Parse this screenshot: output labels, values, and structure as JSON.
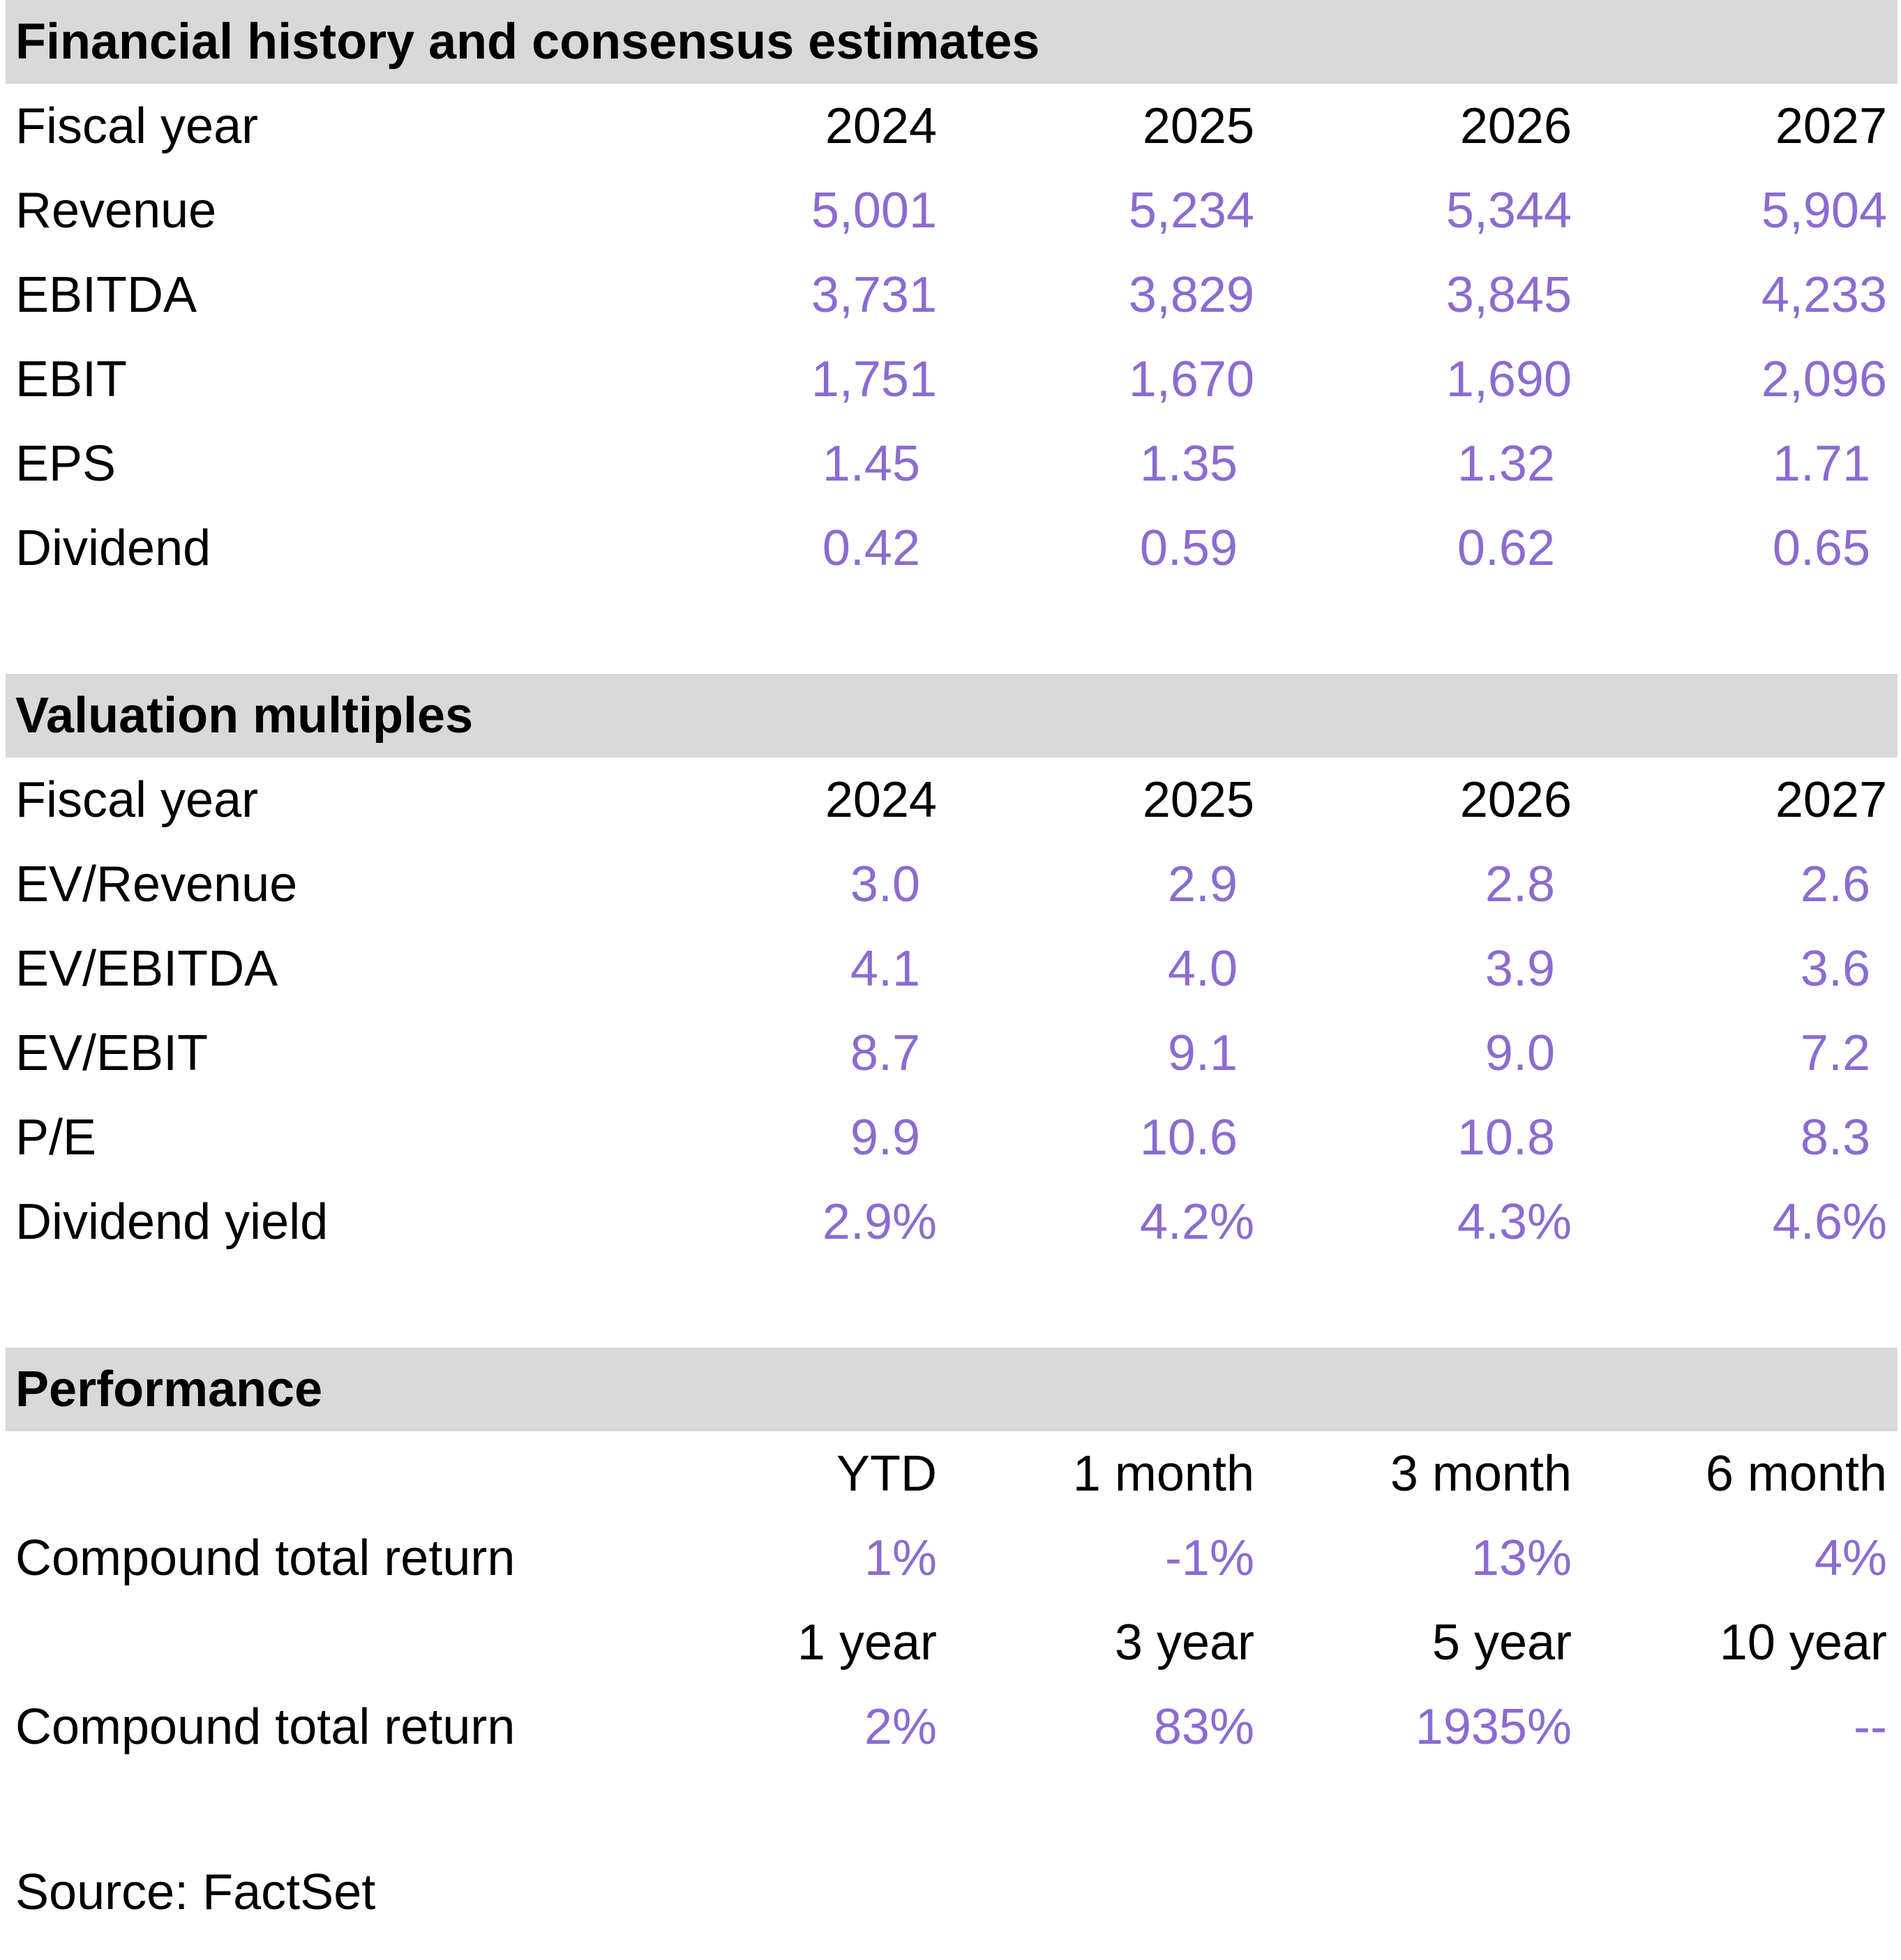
{
  "sections": {
    "financial": {
      "title": "Financial history and consensus estimates",
      "header_label": "Fiscal year",
      "years": [
        "2024",
        "2025",
        "2026",
        "2027"
      ],
      "rows": [
        {
          "label": "Revenue",
          "values": [
            "5,001",
            "5,234",
            "5,344",
            "5,904"
          ]
        },
        {
          "label": "EBITDA",
          "values": [
            "3,731",
            "3,829",
            "3,845",
            "4,233"
          ]
        },
        {
          "label": "EBIT",
          "values": [
            "1,751",
            "1,670",
            "1,690",
            "2,096"
          ]
        },
        {
          "label": "EPS",
          "values": [
            "1.45",
            "1.35",
            "1.32",
            "1.71"
          ]
        },
        {
          "label": "Dividend",
          "values": [
            "0.42",
            "0.59",
            "0.62",
            "0.65"
          ]
        }
      ]
    },
    "valuation": {
      "title": "Valuation multiples",
      "header_label": "Fiscal year",
      "years": [
        "2024",
        "2025",
        "2026",
        "2027"
      ],
      "rows": [
        {
          "label": "EV/Revenue",
          "values": [
            "3.0",
            "2.9",
            "2.8",
            "2.6"
          ]
        },
        {
          "label": "EV/EBITDA",
          "values": [
            "4.1",
            "4.0",
            "3.9",
            "3.6"
          ]
        },
        {
          "label": "EV/EBIT",
          "values": [
            "8.7",
            "9.1",
            "9.0",
            "7.2"
          ]
        },
        {
          "label": "P/E",
          "values": [
            "9.9",
            "10.6",
            "10.8",
            "8.3"
          ]
        },
        {
          "label": "Dividend yield",
          "values": [
            "2.9%",
            "4.2%",
            "4.3%",
            "4.6%"
          ]
        }
      ]
    },
    "performance": {
      "title": "Performance",
      "periods_short": [
        "YTD",
        "1 month",
        "3 month",
        "6 month"
      ],
      "row_short": {
        "label": "Compound total return",
        "values": [
          "1%",
          "-1%",
          "13%",
          "4%"
        ]
      },
      "periods_long": [
        "1 year",
        "3 year",
        "5 year",
        "10 year"
      ],
      "row_long": {
        "label": "Compound total return",
        "values": [
          "2%",
          "83%",
          "1935%",
          "--"
        ]
      }
    }
  },
  "source": "Source: FactSet",
  "colors": {
    "header_bg": "#d9d9d9",
    "value_text": "#8c6bd1",
    "label_text": "#000000"
  }
}
